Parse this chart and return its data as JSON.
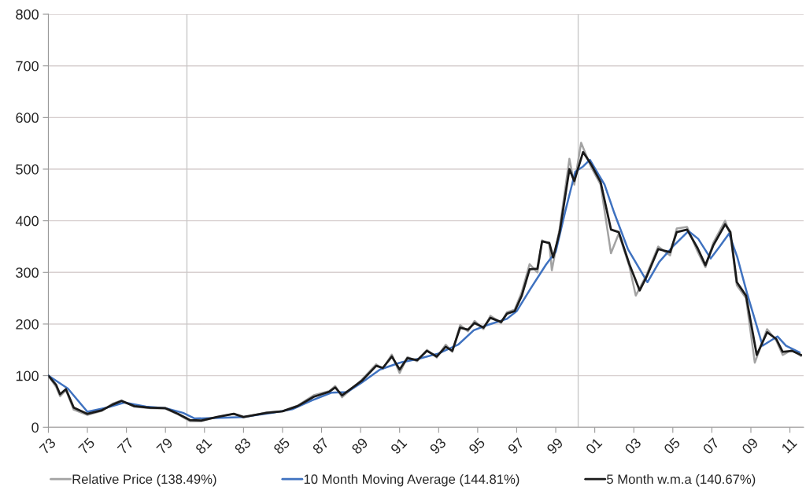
{
  "chart_data": {
    "type": "line",
    "xlim": [
      1973,
      2011.7
    ],
    "xticks": [
      {
        "value": 1973,
        "label": "73"
      },
      {
        "value": 1975,
        "label": "75"
      },
      {
        "value": 1977,
        "label": "77"
      },
      {
        "value": 1979,
        "label": "79"
      },
      {
        "value": 1981,
        "label": "81"
      },
      {
        "value": 1983,
        "label": "83"
      },
      {
        "value": 1985,
        "label": "85"
      },
      {
        "value": 1987,
        "label": "87"
      },
      {
        "value": 1989,
        "label": "89"
      },
      {
        "value": 1991,
        "label": "91"
      },
      {
        "value": 1993,
        "label": "93"
      },
      {
        "value": 1995,
        "label": "95"
      },
      {
        "value": 1997,
        "label": "97"
      },
      {
        "value": 1999,
        "label": "99"
      },
      {
        "value": 2001,
        "label": "01"
      },
      {
        "value": 2003,
        "label": "03"
      },
      {
        "value": 2005,
        "label": "05"
      },
      {
        "value": 2007,
        "label": "07"
      },
      {
        "value": 2009,
        "label": "09"
      },
      {
        "value": 2011,
        "label": "11"
      }
    ],
    "ylim": [
      0,
      800
    ],
    "yticks": [
      0,
      100,
      200,
      300,
      400,
      500,
      600,
      700,
      800
    ],
    "grid": "y",
    "legend": "bottom",
    "line_style": "solid",
    "marker": "none",
    "ref_lines": [
      {
        "axis": "x",
        "value": 1980.1,
        "color": "#c8c8c8"
      },
      {
        "axis": "x",
        "value": 2000.15,
        "color": "#c8c8c8"
      }
    ],
    "series": [
      {
        "name": "Relative Price (138.49%)",
        "color": "#a3a3a3",
        "x": [
          1973.0,
          1973.4,
          1973.6,
          1973.9,
          1974.3,
          1975.0,
          1975.75,
          1976.3,
          1976.75,
          1977.4,
          1978.2,
          1979.0,
          1979.65,
          1980.25,
          1980.85,
          1981.65,
          1982.5,
          1983.0,
          1984.2,
          1985.0,
          1985.77,
          1986.6,
          1987.4,
          1987.7,
          1988.05,
          1989.06,
          1989.8,
          1990.14,
          1990.6,
          1991.0,
          1991.4,
          1991.9,
          1992.4,
          1992.9,
          1993.36,
          1993.7,
          1994.1,
          1994.5,
          1994.84,
          1995.3,
          1995.65,
          1996.2,
          1996.5,
          1996.9,
          1997.26,
          1997.66,
          1998.06,
          1998.3,
          1998.67,
          1998.8,
          1999.2,
          1999.7,
          1999.95,
          2000.3,
          2000.8,
          2001.3,
          2001.83,
          2002.23,
          2002.77,
          2003.1,
          2003.65,
          2004.25,
          2004.86,
          2005.2,
          2005.73,
          2006.27,
          2006.67,
          2007.07,
          2007.68,
          2007.95,
          2008.28,
          2008.75,
          2009.2,
          2009.83,
          2010.3,
          2010.63,
          2011.1,
          2011.57
        ],
        "values": [
          100,
          78,
          60,
          72,
          34,
          24,
          32,
          46,
          52,
          40,
          37,
          36,
          25,
          12,
          12,
          20,
          26,
          19,
          29,
          31,
          42,
          62,
          70,
          80,
          58,
          92,
          122,
          113,
          141,
          105,
          136,
          128,
          150,
          135,
          160,
          146,
          198,
          186,
          206,
          190,
          216,
          202,
          223,
          228,
          262,
          316,
          300,
          362,
          355,
          304,
          385,
          520,
          470,
          551,
          505,
          470,
          337,
          375,
          312,
          255,
          295,
          350,
          333,
          385,
          388,
          340,
          310,
          357,
          400,
          372,
          275,
          250,
          125,
          190,
          168,
          140,
          150,
          138
        ]
      },
      {
        "name": "10 Month Moving Average (144.81%)",
        "color": "#3f72c0",
        "x": [
          1973.0,
          1974.0,
          1975.0,
          1976.0,
          1976.9,
          1978.0,
          1979.0,
          1979.9,
          1980.5,
          1981.5,
          1983.0,
          1984.5,
          1985.5,
          1986.5,
          1987.5,
          1988.3,
          1989.0,
          1990.0,
          1991.0,
          1992.0,
          1993.0,
          1994.0,
          1994.8,
          1995.5,
          1996.5,
          1997.0,
          1997.7,
          1998.5,
          1999.0,
          1999.5,
          2000.0,
          2000.4,
          2000.75,
          2001.5,
          2002.0,
          2002.7,
          2003.7,
          2004.3,
          2005.0,
          2005.8,
          2006.3,
          2006.94,
          2007.4,
          2007.88,
          2008.3,
          2008.8,
          2009.6,
          2010.36,
          2010.8,
          2011.5
        ],
        "values": [
          100,
          75,
          30,
          38,
          48,
          40,
          37,
          28,
          17,
          18,
          20,
          28,
          35,
          52,
          67,
          68,
          85,
          112,
          125,
          133,
          143,
          160,
          188,
          198,
          210,
          225,
          268,
          315,
          340,
          420,
          495,
          505,
          518,
          470,
          415,
          345,
          281,
          320,
          350,
          380,
          365,
          327,
          350,
          375,
          330,
          260,
          158,
          176,
          158,
          145
        ]
      },
      {
        "name": "5 Month w.m.a (140.67%)",
        "color": "#1a1a1a",
        "x": [
          1973.0,
          1973.4,
          1973.6,
          1973.9,
          1974.3,
          1975.0,
          1975.75,
          1976.3,
          1976.75,
          1977.4,
          1978.2,
          1979.0,
          1979.65,
          1980.25,
          1980.85,
          1981.65,
          1982.5,
          1983.0,
          1984.2,
          1985.0,
          1985.77,
          1986.6,
          1987.4,
          1987.7,
          1988.05,
          1989.06,
          1989.8,
          1990.14,
          1990.6,
          1991.0,
          1991.4,
          1991.9,
          1992.4,
          1992.9,
          1993.36,
          1993.7,
          1994.1,
          1994.5,
          1994.84,
          1995.3,
          1995.65,
          1996.2,
          1996.5,
          1996.9,
          1997.26,
          1997.66,
          1998.06,
          1998.3,
          1998.67,
          1998.87,
          1999.2,
          1999.7,
          1999.95,
          2000.4,
          2000.8,
          2001.3,
          2001.83,
          2002.23,
          2002.77,
          2003.3,
          2003.65,
          2004.25,
          2004.86,
          2005.2,
          2005.73,
          2006.27,
          2006.67,
          2007.07,
          2007.68,
          2007.95,
          2008.28,
          2008.75,
          2009.3,
          2009.83,
          2010.3,
          2010.63,
          2011.1,
          2011.57
        ],
        "values": [
          100,
          82,
          64,
          74,
          38,
          26,
          33,
          44,
          51,
          41,
          38,
          37,
          26,
          14,
          13,
          20,
          26,
          20,
          28,
          31,
          41,
          59,
          69,
          77,
          62,
          90,
          119,
          115,
          137,
          112,
          134,
          130,
          148,
          137,
          156,
          148,
          193,
          189,
          202,
          193,
          212,
          204,
          220,
          225,
          255,
          306,
          307,
          360,
          357,
          329,
          378,
          500,
          477,
          533,
          510,
          475,
          383,
          378,
          316,
          265,
          291,
          345,
          339,
          378,
          383,
          347,
          314,
          352,
          393,
          378,
          281,
          255,
          140,
          184,
          171,
          146,
          148,
          140
        ]
      }
    ]
  }
}
